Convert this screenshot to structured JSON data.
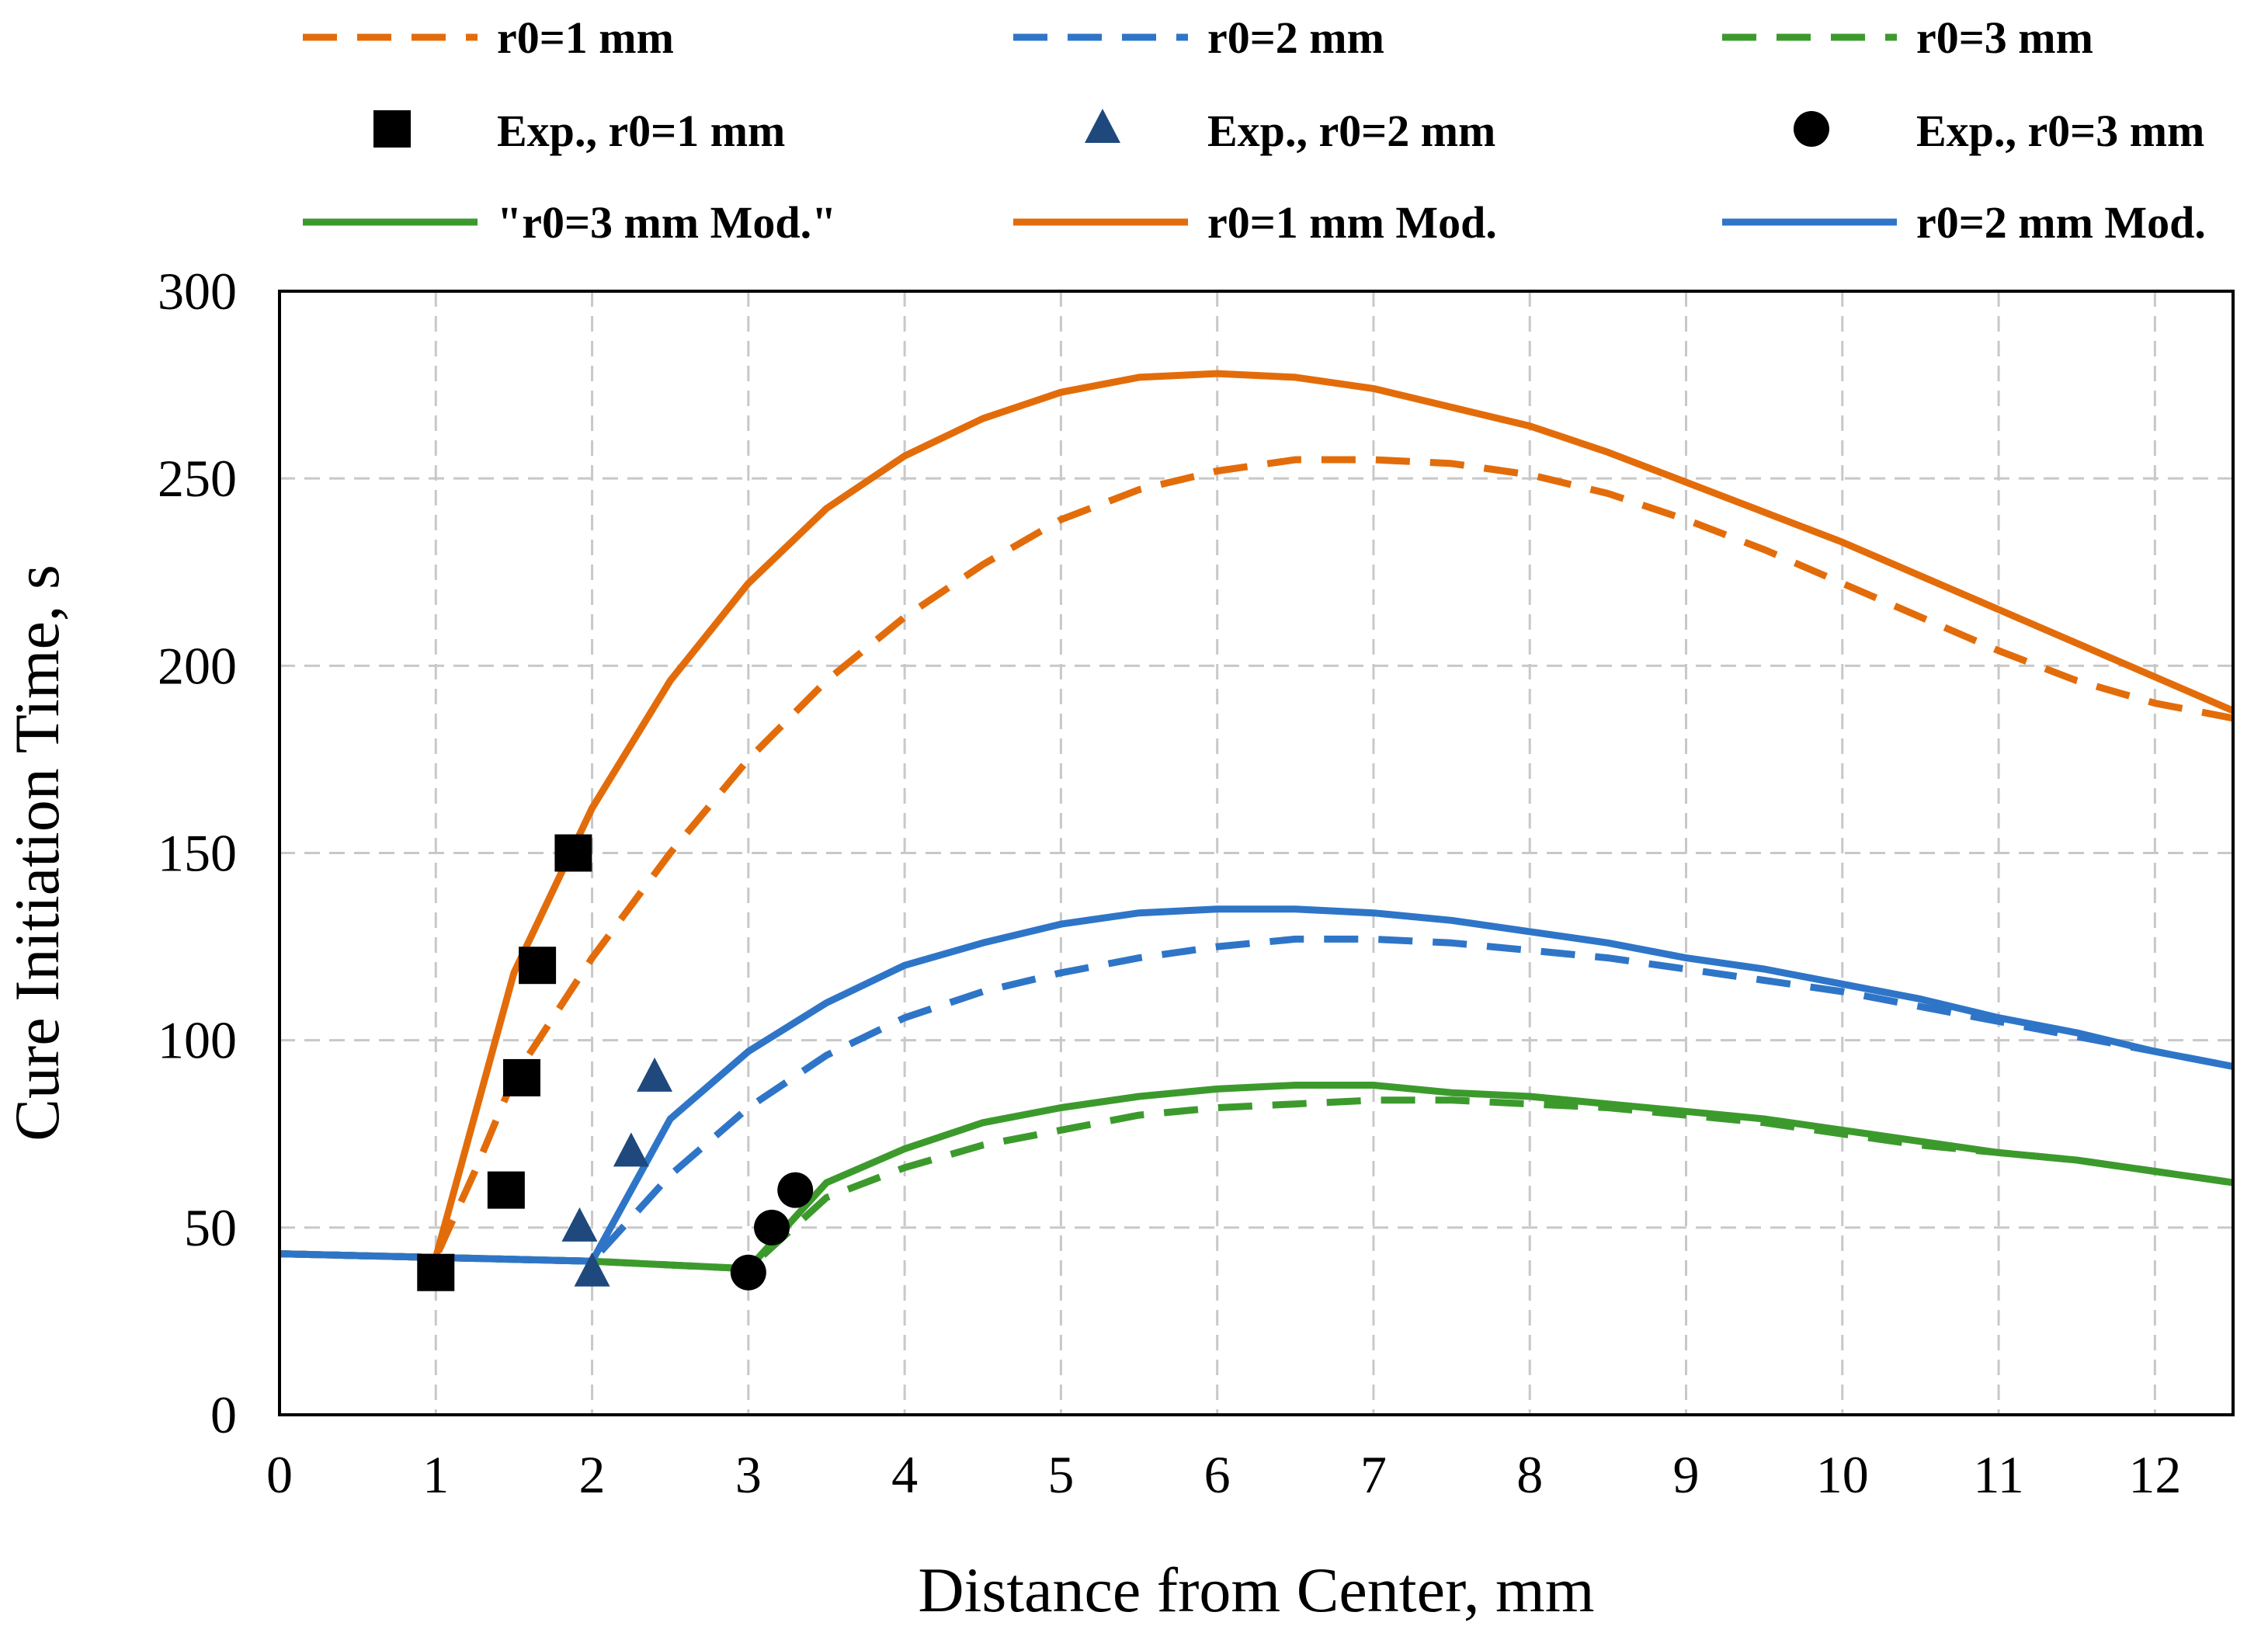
{
  "chart_data": {
    "type": "line",
    "xlabel": "Distance from Center, mm",
    "ylabel": "Cure Initiation Time, s",
    "xlim": [
      0,
      12.5
    ],
    "ylim": [
      0,
      300
    ],
    "xticks": [
      0,
      1,
      2,
      3,
      4,
      5,
      6,
      7,
      8,
      9,
      10,
      11,
      12
    ],
    "yticks": [
      0,
      50,
      100,
      150,
      200,
      250,
      300
    ],
    "grid": true,
    "legend_position": "top",
    "series": [
      {
        "id": "r0-1-dashed",
        "name": "r0=1 mm",
        "style": "dashed",
        "color": "#E36C0A",
        "x": [
          0,
          1,
          1.25,
          1.5,
          2,
          2.5,
          3,
          3.5,
          4,
          4.5,
          5,
          5.5,
          6,
          6.5,
          7,
          7.5,
          8,
          8.5,
          9,
          9.5,
          10,
          10.5,
          11,
          11.5,
          12,
          12.5
        ],
        "y": [
          43,
          42,
          65,
          90,
          122,
          150,
          175,
          196,
          213,
          227,
          239,
          247,
          252,
          255,
          255,
          254,
          251,
          246,
          239,
          231,
          222,
          213,
          204,
          196,
          190,
          186
        ]
      },
      {
        "id": "r0-2-dashed",
        "name": "r0=2 mm",
        "style": "dashed",
        "color": "#2E75C8",
        "x": [
          0,
          1,
          2,
          2.5,
          3,
          3.5,
          4,
          4.5,
          5,
          5.5,
          6,
          6.5,
          7,
          7.5,
          8,
          8.5,
          9,
          9.5,
          10,
          10.5,
          11,
          11.5,
          12,
          12.5
        ],
        "y": [
          43,
          42,
          41,
          64,
          82,
          96,
          106,
          113,
          118,
          122,
          125,
          127,
          127,
          126,
          124,
          122,
          119,
          116,
          113,
          109,
          105,
          101,
          97,
          93
        ]
      },
      {
        "id": "r0-3-dashed",
        "name": "r0=3 mm",
        "style": "dashed",
        "color": "#3C9A2D",
        "x": [
          0,
          1,
          2,
          3,
          3.5,
          4,
          4.5,
          5,
          5.5,
          6,
          6.5,
          7,
          7.5,
          8,
          8.5,
          9,
          9.5,
          10,
          10.5,
          11,
          11.5,
          12,
          12.5
        ],
        "y": [
          43,
          42,
          41,
          39,
          58,
          66,
          72,
          76,
          80,
          82,
          83,
          84,
          84,
          83,
          82,
          80,
          78,
          75,
          72,
          70,
          68,
          65,
          62
        ]
      },
      {
        "id": "r0-3-mod",
        "name": "\"r0=3 mm Mod.\"",
        "style": "solid",
        "color": "#3C9A2D",
        "x": [
          0,
          1,
          2,
          3,
          3.5,
          4,
          4.5,
          5,
          5.5,
          6,
          6.5,
          7,
          7.5,
          8,
          8.5,
          9,
          9.5,
          10,
          10.5,
          11,
          11.5,
          12,
          12.5
        ],
        "y": [
          43,
          42,
          41,
          39,
          62,
          71,
          78,
          82,
          85,
          87,
          88,
          88,
          86,
          85,
          83,
          81,
          79,
          76,
          73,
          70,
          68,
          65,
          62
        ]
      },
      {
        "id": "r0-1-mod",
        "name": "r0=1 mm Mod.",
        "style": "solid",
        "color": "#E36C0A",
        "x": [
          0,
          1,
          1.5,
          2,
          2.5,
          3,
          3.5,
          4,
          4.5,
          5,
          5.5,
          6,
          6.5,
          7,
          7.5,
          8,
          8.5,
          9,
          9.5,
          10,
          10.5,
          11,
          11.5,
          12,
          12.5
        ],
        "y": [
          43,
          42,
          118,
          162,
          196,
          222,
          242,
          256,
          266,
          273,
          277,
          278,
          277,
          274,
          269,
          264,
          257,
          249,
          241,
          233,
          224,
          215,
          206,
          197,
          188
        ]
      },
      {
        "id": "r0-2-mod",
        "name": "r0=2 mm Mod.",
        "style": "solid",
        "color": "#2E75C8",
        "x": [
          0,
          1,
          2,
          2.5,
          3,
          3.5,
          4,
          4.5,
          5,
          5.5,
          6,
          6.5,
          7,
          7.5,
          8,
          8.5,
          9,
          9.5,
          10,
          10.5,
          11,
          11.5,
          12,
          12.5
        ],
        "y": [
          43,
          42,
          41,
          79,
          97,
          110,
          120,
          126,
          131,
          134,
          135,
          135,
          134,
          132,
          129,
          126,
          122,
          119,
          115,
          111,
          106,
          102,
          97,
          93
        ]
      }
    ],
    "scatter": [
      {
        "id": "exp-r0-1",
        "name": "Exp., r0=1 mm",
        "marker": "square",
        "color": "#000000",
        "points": [
          [
            1,
            38
          ],
          [
            1.45,
            60
          ],
          [
            1.55,
            90
          ],
          [
            1.65,
            120
          ],
          [
            1.88,
            150
          ]
        ]
      },
      {
        "id": "exp-r0-2",
        "name": "Exp., r0=2 mm",
        "marker": "triangle",
        "color": "#1F497D",
        "points": [
          [
            2,
            38
          ],
          [
            1.92,
            50
          ],
          [
            2.25,
            70
          ],
          [
            2.4,
            90
          ]
        ]
      },
      {
        "id": "exp-r0-3",
        "name": "Exp., r0=3 mm",
        "marker": "circle",
        "color": "#000000",
        "points": [
          [
            3,
            38
          ],
          [
            3.15,
            50
          ],
          [
            3.3,
            60
          ]
        ]
      }
    ],
    "legend": [
      [
        "r0-1-dashed",
        "r0-2-dashed",
        "r0-3-dashed"
      ],
      [
        "exp-r0-1",
        "exp-r0-2",
        "exp-r0-3"
      ],
      [
        "r0-3-mod",
        "r0-1-mod",
        "r0-2-mod"
      ]
    ]
  }
}
